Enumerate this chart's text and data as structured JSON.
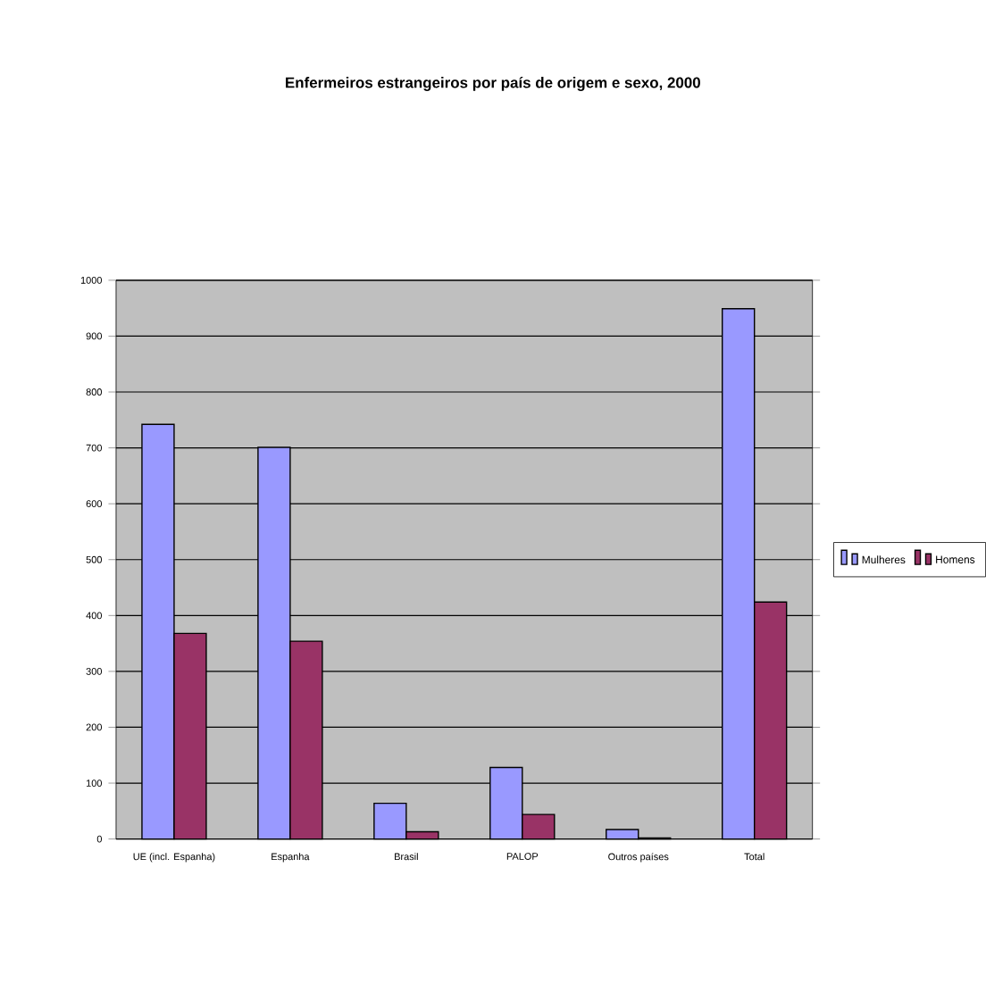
{
  "chart_data": {
    "type": "bar",
    "title": "Enfermeiros  estrangeiros por país de origem e sexo, 2000",
    "categories": [
      "UE (incl. Espanha)",
      "Espanha",
      "Brasil",
      "PALOP",
      "Outros países",
      "Total"
    ],
    "series": [
      {
        "name": "Mulheres",
        "color": "#9999ff",
        "values": [
          742,
          701,
          64,
          128,
          17,
          949
        ]
      },
      {
        "name": "Homens",
        "color": "#993366",
        "values": [
          368,
          354,
          13,
          44,
          2,
          424
        ]
      }
    ],
    "ylim": [
      0,
      1000
    ],
    "yticks": [
      0,
      100,
      200,
      300,
      400,
      500,
      600,
      700,
      800,
      900,
      1000
    ],
    "grid": "y",
    "legend": "right"
  }
}
